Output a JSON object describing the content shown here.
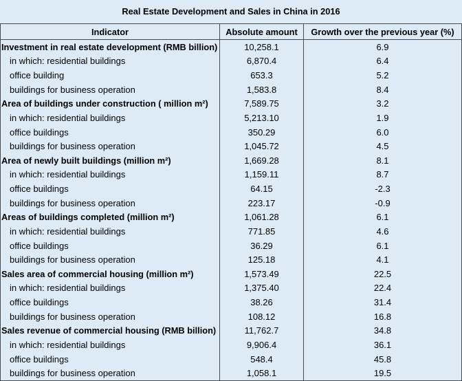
{
  "chart_data": {
    "type": "table",
    "title": "Real Estate Development and Sales in China in 2016",
    "columns": [
      "Indicator",
      "Absolute amount",
      "Growth over the previous year (%)"
    ],
    "groups": [
      {
        "indicator": "Investment in real estate development (RMB billion)",
        "amount": "10,258.1",
        "growth": "6.9",
        "items": [
          {
            "indicator": "in which: residential buildings",
            "amount": "6,870.4",
            "growth": "6.4"
          },
          {
            "indicator": "office building",
            "amount": "653.3",
            "growth": "5.2"
          },
          {
            "indicator": "buildings for business operation",
            "amount": "1,583.8",
            "growth": "8.4"
          }
        ]
      },
      {
        "indicator": "Area of buildings under construction ( million m²)",
        "amount": "7,589.75",
        "growth": "3.2",
        "items": [
          {
            "indicator": "in which: residential buildings",
            "amount": "5,213.10",
            "growth": "1.9"
          },
          {
            "indicator": "office buildings",
            "amount": "350.29",
            "growth": "6.0"
          },
          {
            "indicator": "buildings for business operation",
            "amount": "1,045.72",
            "growth": "4.5"
          }
        ]
      },
      {
        "indicator": "Area of newly built buildings (million m²)",
        "amount": "1,669.28",
        "growth": "8.1",
        "items": [
          {
            "indicator": "in which: residential buildings",
            "amount": "1,159.11",
            "growth": "8.7"
          },
          {
            "indicator": "office buildings",
            "amount": "64.15",
            "growth": "-2.3"
          },
          {
            "indicator": "buildings for business operation",
            "amount": "223.17",
            "growth": "-0.9"
          }
        ]
      },
      {
        "indicator": "Areas of buildings completed (million m²)",
        "amount": "1,061.28",
        "growth": "6.1",
        "items": [
          {
            "indicator": "in which: residential buildings",
            "amount": "771.85",
            "growth": "4.6"
          },
          {
            "indicator": "office buildings",
            "amount": "36.29",
            "growth": "6.1"
          },
          {
            "indicator": "buildings for business operation",
            "amount": "125.18",
            "growth": "4.1"
          }
        ]
      },
      {
        "indicator": "Sales area of commercial housing (million m²)",
        "amount": "1,573.49",
        "growth": "22.5",
        "items": [
          {
            "indicator": "in which: residential buildings",
            "amount": "1,375.40",
            "growth": "22.4"
          },
          {
            "indicator": "office buildings",
            "amount": "38.26",
            "growth": "31.4"
          },
          {
            "indicator": "buildings for business operation",
            "amount": "108.12",
            "growth": "16.8"
          }
        ]
      },
      {
        "indicator": "Sales revenue of commercial housing (RMB billion)",
        "amount": "11,762.7",
        "growth": "34.8",
        "items": [
          {
            "indicator": "in which: residential buildings",
            "amount": "9,906.4",
            "growth": "36.1"
          },
          {
            "indicator": "office buildings",
            "amount": "548.4",
            "growth": "45.8"
          },
          {
            "indicator": "buildings for business operation",
            "amount": "1,058.1",
            "growth": "19.5"
          }
        ]
      }
    ]
  }
}
